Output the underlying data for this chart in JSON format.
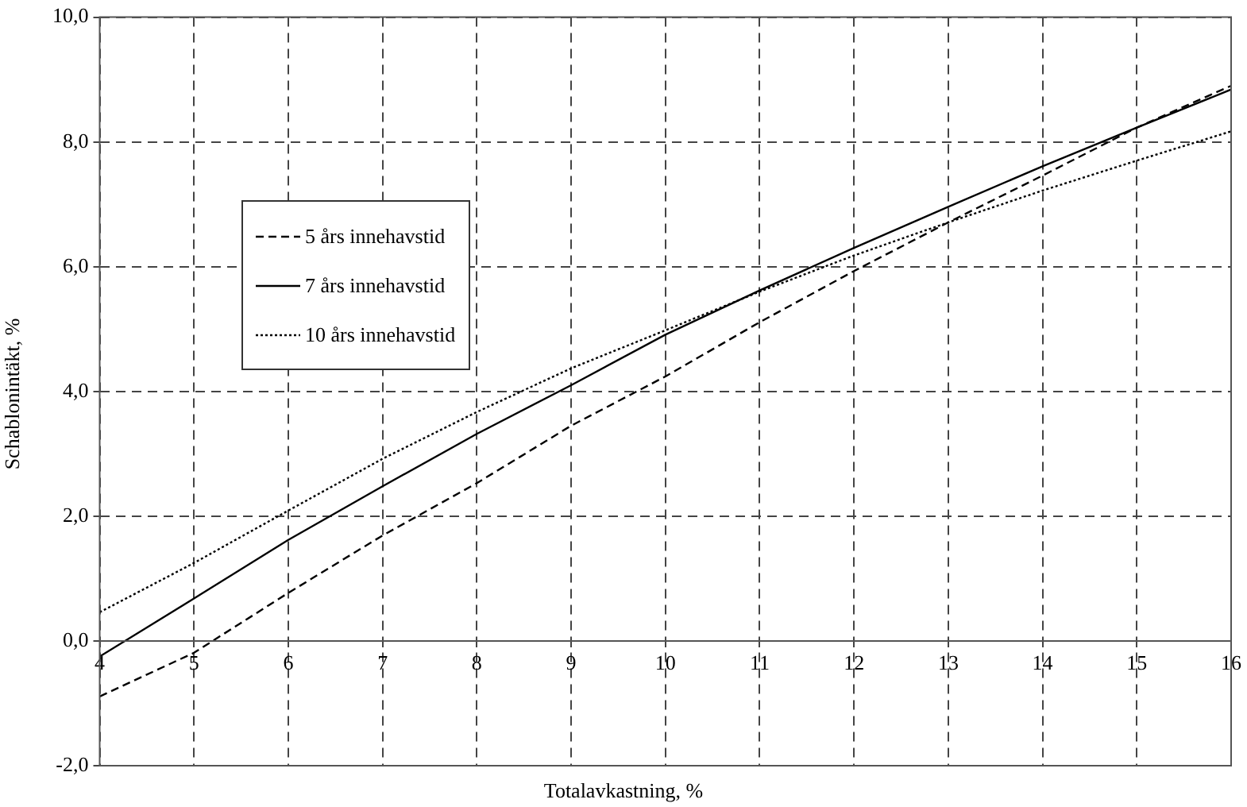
{
  "chart_data": {
    "type": "line",
    "xlabel": "Totalavkastning, %",
    "ylabel": "Schablonintäkt, %",
    "x": [
      4,
      5,
      6,
      7,
      8,
      9,
      10,
      11,
      12,
      13,
      14,
      15,
      16
    ],
    "series": [
      {
        "name": "5 års innehavstid",
        "color": "#000000",
        "line_style": "dashed",
        "values": [
          -0.89,
          -0.19,
          0.77,
          1.69,
          2.53,
          3.45,
          4.24,
          5.11,
          5.93,
          6.71,
          7.46,
          8.23,
          8.9
        ]
      },
      {
        "name": "7 års innehavstid",
        "color": "#000000",
        "line_style": "solid",
        "values": [
          -0.25,
          0.68,
          1.62,
          2.48,
          3.32,
          4.1,
          4.91,
          5.62,
          6.3,
          6.96,
          7.61,
          8.23,
          8.84
        ]
      },
      {
        "name": "10 års innehavstid",
        "color": "#000000",
        "line_style": "dotted",
        "values": [
          0.46,
          1.25,
          2.09,
          2.92,
          3.67,
          4.37,
          4.98,
          5.6,
          6.18,
          6.71,
          7.22,
          7.7,
          8.17
        ]
      }
    ],
    "xlim": [
      4,
      16
    ],
    "xticks": [
      4,
      5,
      6,
      7,
      8,
      9,
      10,
      11,
      12,
      13,
      14,
      15,
      16
    ],
    "ylim": [
      -2,
      10
    ],
    "yticks": [
      {
        "value": -2,
        "label": "-2,0"
      },
      {
        "value": 0,
        "label": "0,0"
      },
      {
        "value": 2,
        "label": "2,0"
      },
      {
        "value": 4,
        "label": "4,0"
      },
      {
        "value": 6,
        "label": "6,0"
      },
      {
        "value": 8,
        "label": "8,0"
      },
      {
        "value": 10,
        "label": "10,0"
      }
    ],
    "grid": true,
    "legend": "top left",
    "marker": "none"
  }
}
